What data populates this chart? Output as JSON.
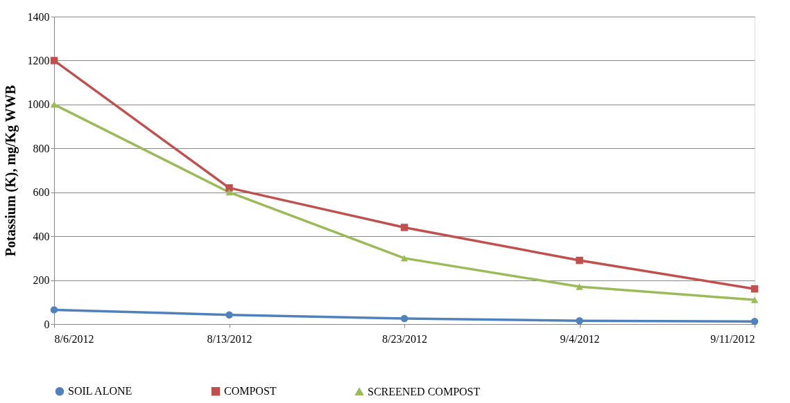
{
  "chart_data": {
    "type": "line",
    "ylabel": "Potassium (K), mg/Kg WWB",
    "categories": [
      "8/6/2012",
      "8/13/2012",
      "8/23/2012",
      "9/4/2012",
      "9/11/2012"
    ],
    "series": [
      {
        "name": "SOIL ALONE",
        "color": "#4f81bd",
        "marker": "circle",
        "values": [
          65,
          42,
          25,
          15,
          12
        ]
      },
      {
        "name": "COMPOST",
        "color": "#c0504d",
        "marker": "square",
        "values": [
          1200,
          620,
          440,
          290,
          160
        ]
      },
      {
        "name": "SCREENED COMPOST",
        "color": "#9bbb59",
        "marker": "triangle",
        "values": [
          1000,
          600,
          300,
          170,
          110
        ]
      }
    ],
    "ylim": [
      0,
      1400
    ],
    "yticks": [
      0,
      200,
      400,
      600,
      800,
      1000,
      1200,
      1400
    ],
    "grid": "y",
    "legend": "bottom",
    "line_style": "solid"
  }
}
